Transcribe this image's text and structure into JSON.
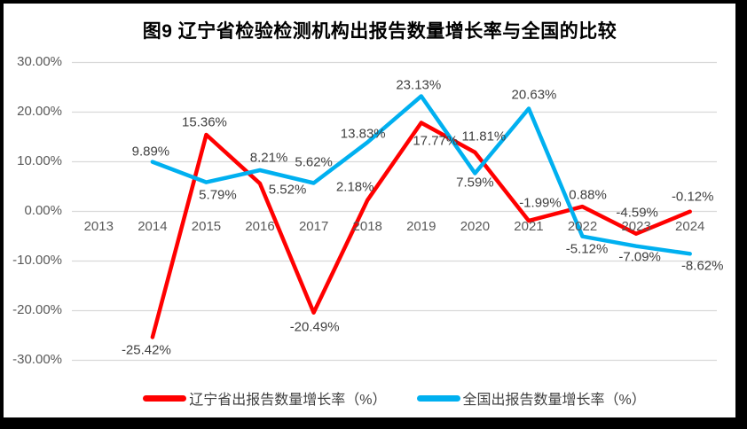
{
  "title": "图9  辽宁省检验检测机构出报告数量增长率与全国的比较",
  "chart_data": {
    "type": "line",
    "title": "图9  辽宁省检验检测机构出报告数量增长率与全国的比较",
    "categories": [
      "2013",
      "2014",
      "2015",
      "2016",
      "2017",
      "2018",
      "2019",
      "2020",
      "2021",
      "2022",
      "2023",
      "2024"
    ],
    "y_ticks": [
      "30.00%",
      "20.00%",
      "10.00%",
      "0.00%",
      "-10.00%",
      "-20.00%",
      "-30.00%"
    ],
    "y_tick_values": [
      30,
      20,
      10,
      0,
      -10,
      -20,
      -30
    ],
    "ylim": [
      -30,
      30
    ],
    "grid": "horizontal-only",
    "gridline_color": "#D9D9D9",
    "legend_position": "bottom",
    "xlabel": "",
    "ylabel": "",
    "series": [
      {
        "name": "辽宁省出报告数量增长率（%）",
        "color": "#FF0000",
        "values": [
          null,
          -25.42,
          15.36,
          5.52,
          -20.49,
          2.18,
          17.77,
          11.81,
          -1.99,
          0.88,
          -4.59,
          -0.12
        ],
        "labels": [
          null,
          "-25.42%",
          "15.36%",
          "5.52%",
          "-20.49%",
          "2.18%",
          "17.77%",
          "11.81%",
          "-1.99%",
          "0.88%",
          "-4.59%",
          "-0.12%"
        ],
        "label_offsets": [
          null,
          [
            -7,
            15
          ],
          [
            -2,
            -14
          ],
          [
            31,
            7
          ],
          [
            1,
            16
          ],
          [
            -14,
            -15
          ],
          [
            16,
            21
          ],
          [
            10,
            -18
          ],
          [
            13,
            -20
          ],
          [
            6,
            -13
          ],
          [
            1,
            -24
          ],
          [
            3,
            -17
          ]
        ]
      },
      {
        "name": "全国出报告数量增长率（%）",
        "color": "#00B0F0",
        "values": [
          null,
          9.89,
          5.79,
          8.21,
          5.62,
          13.83,
          23.13,
          7.59,
          20.63,
          -5.12,
          -7.09,
          -8.62
        ],
        "labels": [
          null,
          "9.89%",
          "5.79%",
          "8.21%",
          "5.62%",
          "13.83%",
          "23.13%",
          "7.59%",
          "20.63%",
          "-5.12%",
          "-7.09%",
          "-8.62%"
        ],
        "label_offsets": [
          null,
          [
            -2,
            -12
          ],
          [
            13,
            14
          ],
          [
            10,
            -14
          ],
          [
            0,
            -24
          ],
          [
            -5,
            -10
          ],
          [
            -3,
            -12
          ],
          [
            0,
            11
          ],
          [
            6,
            -15
          ],
          [
            5,
            14
          ],
          [
            4,
            12
          ],
          [
            14,
            14
          ]
        ]
      }
    ]
  }
}
